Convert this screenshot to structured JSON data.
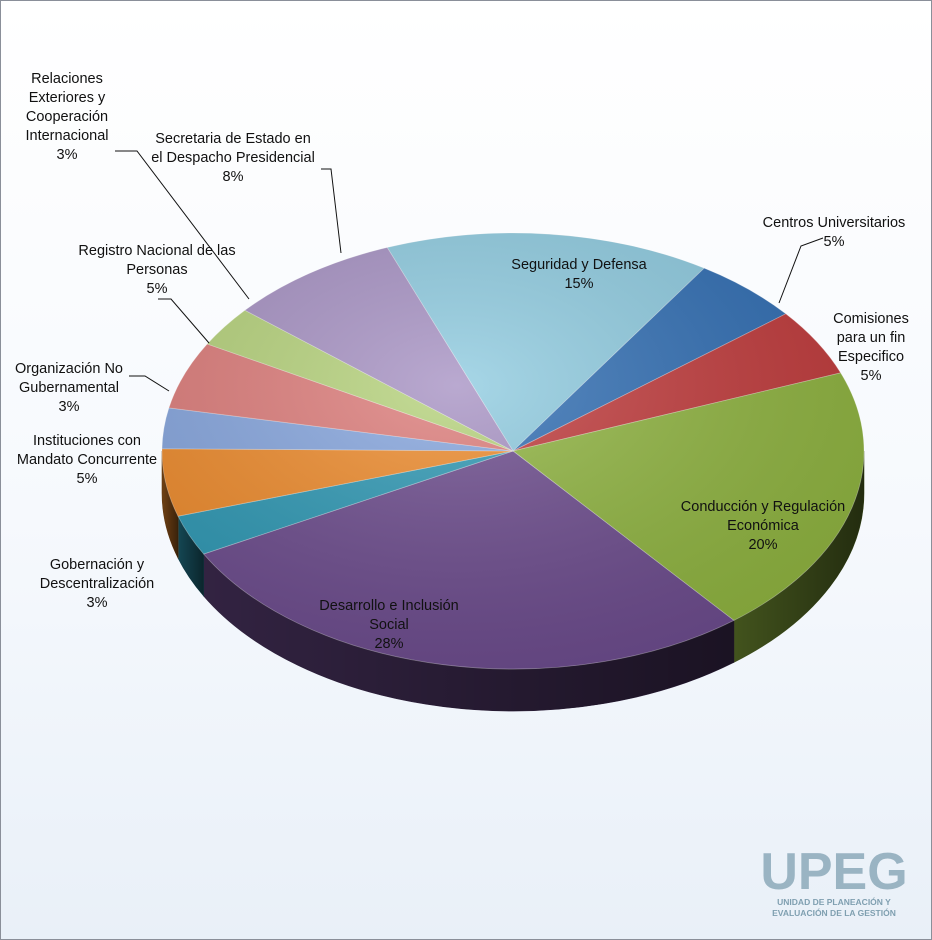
{
  "chart_data": {
    "type": "pie",
    "variant": "3d-exploded-none",
    "title": "",
    "slices": [
      {
        "name": "Seguridad y Defensa",
        "label_lines": [
          "Seguridad y Defensa"
        ],
        "pct_label": "15%",
        "value": 15,
        "color": "#8ecbe0"
      },
      {
        "name": "Centros Universitarios",
        "label_lines": [
          "Centros Universitarios"
        ],
        "pct_label": "5%",
        "value": 5,
        "color": "#2f6db3"
      },
      {
        "name": "Comisiones para un fin Especifico",
        "label_lines": [
          "Comisiones",
          "para un fin",
          "Especifico"
        ],
        "pct_label": "5%",
        "value": 5,
        "color": "#c0393a"
      },
      {
        "name": "Conducción y Regulación Económica",
        "label_lines": [
          "Conducción y Regulación",
          "Económica"
        ],
        "pct_label": "20%",
        "value": 20,
        "color": "#8eb33e"
      },
      {
        "name": "Desarrollo e Inclusión Social",
        "label_lines": [
          "Desarrollo e Inclusión",
          "Social"
        ],
        "pct_label": "28%",
        "value": 28,
        "color": "#6b4a8c"
      },
      {
        "name": "Gobernación y Descentralización",
        "label_lines": [
          "Gobernación y",
          "Descentralización"
        ],
        "pct_label": "3%",
        "value": 3,
        "color": "#2c97b3"
      },
      {
        "name": "Instituciones con Mandato Concurrente",
        "label_lines": [
          "Instituciones con",
          "Mandato Concurrente"
        ],
        "pct_label": "5%",
        "value": 5,
        "color": "#ee8a2a"
      },
      {
        "name": "Organización No Gubernamental",
        "label_lines": [
          "Organización No",
          "Gubernamental"
        ],
        "pct_label": "3%",
        "value": 3,
        "color": "#85a5de"
      },
      {
        "name": "Registro Nacional de las Personas",
        "label_lines": [
          "Registro Nacional de las",
          "Personas"
        ],
        "pct_label": "5%",
        "value": 5,
        "color": "#dd7b79"
      },
      {
        "name": "Relaciones Exteriores y Cooperación Internacional",
        "label_lines": [
          "Relaciones",
          "Exteriores y",
          "Cooperación",
          "Internacional"
        ],
        "pct_label": "3%",
        "value": 3,
        "color": "#b5d27a"
      },
      {
        "name": "Secretaria de Estado en el Despacho Presidencial",
        "label_lines": [
          "Secretaria de Estado en",
          "el Despacho Presidencial"
        ],
        "pct_label": "8%",
        "value": 8,
        "color": "#a691c3"
      }
    ],
    "legend": "none",
    "data_labels": "category name and percentage"
  },
  "logo": {
    "text": "UPEG",
    "subtitle_lines": [
      "UNIDAD DE PLANEACIÓN Y",
      "EVALUACIÓN DE LA GESTIÓN"
    ]
  }
}
